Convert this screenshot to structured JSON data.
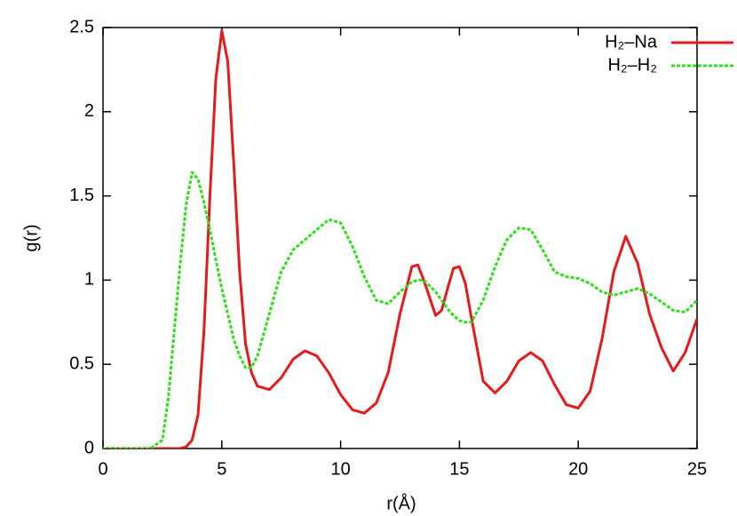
{
  "chart_data": {
    "type": "line",
    "xlabel": "r(Å)",
    "ylabel": "g(r)",
    "x": [
      0,
      0.5,
      1,
      1.5,
      2,
      2.5,
      2.75,
      3,
      3.25,
      3.5,
      3.75,
      4,
      4.25,
      4.5,
      4.75,
      5,
      5.25,
      5.5,
      5.75,
      6,
      6.25,
      6.5,
      7,
      7.5,
      8,
      8.5,
      9,
      9.5,
      10,
      10.5,
      11,
      11.5,
      12,
      12.5,
      13,
      13.25,
      13.5,
      14,
      14.25,
      14.5,
      14.75,
      15,
      15.25,
      15.5,
      16,
      16.5,
      17,
      17.5,
      18,
      18.5,
      19,
      19.5,
      20,
      20.5,
      21,
      21.5,
      22,
      22.5,
      23,
      23.5,
      24,
      24.5,
      25
    ],
    "series": [
      {
        "name": "H₂–Na",
        "color": "#e41a1c",
        "dash": false,
        "values": [
          0,
          0,
          0,
          0,
          0,
          0,
          0,
          0,
          0,
          0.01,
          0.05,
          0.2,
          0.7,
          1.5,
          2.2,
          2.48,
          2.3,
          1.7,
          1.05,
          0.62,
          0.45,
          0.37,
          0.35,
          0.42,
          0.53,
          0.58,
          0.55,
          0.45,
          0.32,
          0.23,
          0.21,
          0.27,
          0.45,
          0.8,
          1.08,
          1.09,
          1.0,
          0.79,
          0.82,
          0.95,
          1.07,
          1.08,
          0.98,
          0.78,
          0.4,
          0.33,
          0.4,
          0.52,
          0.57,
          0.52,
          0.38,
          0.26,
          0.24,
          0.34,
          0.65,
          1.05,
          1.26,
          1.1,
          0.8,
          0.6,
          0.46,
          0.57,
          0.77
        ]
      },
      {
        "name": "H₂–H₂",
        "color": "#33dd22",
        "dash": true,
        "values": [
          0,
          0,
          0,
          0,
          0,
          0.05,
          0.3,
          0.7,
          1.1,
          1.45,
          1.64,
          1.6,
          1.46,
          1.3,
          1.12,
          0.95,
          0.8,
          0.65,
          0.55,
          0.48,
          0.48,
          0.55,
          0.8,
          1.05,
          1.18,
          1.24,
          1.3,
          1.36,
          1.34,
          1.2,
          1.02,
          0.88,
          0.86,
          0.93,
          0.99,
          1.0,
          1.0,
          0.93,
          0.88,
          0.83,
          0.79,
          0.76,
          0.75,
          0.75,
          0.88,
          1.08,
          1.24,
          1.31,
          1.3,
          1.18,
          1.05,
          1.02,
          1.01,
          0.98,
          0.93,
          0.91,
          0.93,
          0.95,
          0.92,
          0.87,
          0.82,
          0.81,
          0.88
        ]
      }
    ],
    "xlim": [
      0,
      25
    ],
    "xticks": [
      0,
      5,
      10,
      15,
      20,
      25
    ],
    "ylim": [
      0,
      2.5
    ],
    "yticks": [
      0,
      0.5,
      1,
      1.5,
      2,
      2.5
    ],
    "grid": false,
    "legend": "top-right"
  }
}
